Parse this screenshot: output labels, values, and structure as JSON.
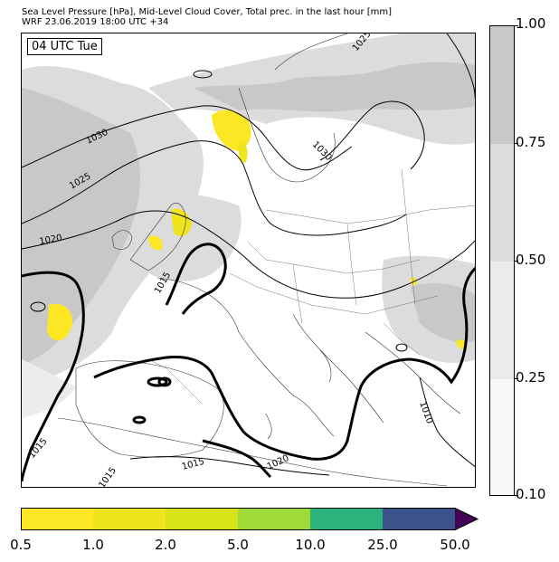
{
  "header": {
    "title_line1": "Sea Level Pressure [hPa], Mid-Level Cloud Cover, Total prec. in the last hour [mm]",
    "title_line2": "WRF 23.06.2019 18:00 UTC +34"
  },
  "map": {
    "time_label": "04 UTC Tue",
    "isobar_labels": [
      "1030",
      "1025",
      "1020",
      "1015",
      "1015",
      "1015",
      "1015",
      "1020",
      "1025",
      "1030",
      "1010"
    ]
  },
  "cloud_colorbar": {
    "ticks": [
      "1.00",
      "0.75",
      "0.50",
      "0.25",
      "0.10"
    ],
    "colors": [
      "#c8c8c8",
      "#dcdcdc",
      "#ececec",
      "#f8f8f8"
    ]
  },
  "precip_colorbar": {
    "ticks": [
      "0.5",
      "1.0",
      "2.0",
      "5.0",
      "10.0",
      "25.0",
      "50.0"
    ],
    "colors": [
      "#fde725",
      "#eee51c",
      "#d8e219",
      "#a0da39",
      "#2db27d",
      "#3b528b",
      "#440154"
    ]
  }
}
